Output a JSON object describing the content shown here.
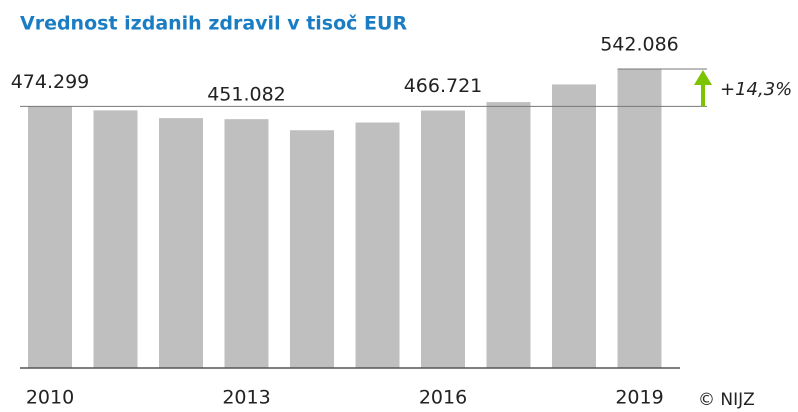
{
  "chart_data": {
    "type": "bar",
    "title": "Vrednost  izdanih zdravil v tisoč EUR",
    "categories": [
      "2010",
      null,
      null,
      "2013",
      null,
      null,
      "2016",
      null,
      null,
      "2019"
    ],
    "values": [
      474.299,
      467,
      453,
      451.082,
      431,
      445,
      466.721,
      482,
      514,
      542.086
    ],
    "value_labels": [
      "474.299",
      null,
      null,
      "451.082",
      null,
      null,
      "466.721",
      null,
      null,
      "542.086"
    ],
    "color": "#bfbfbf",
    "ylim": [
      0,
      600
    ],
    "annotation": "+14,3%",
    "source": "© NIJZ"
  }
}
